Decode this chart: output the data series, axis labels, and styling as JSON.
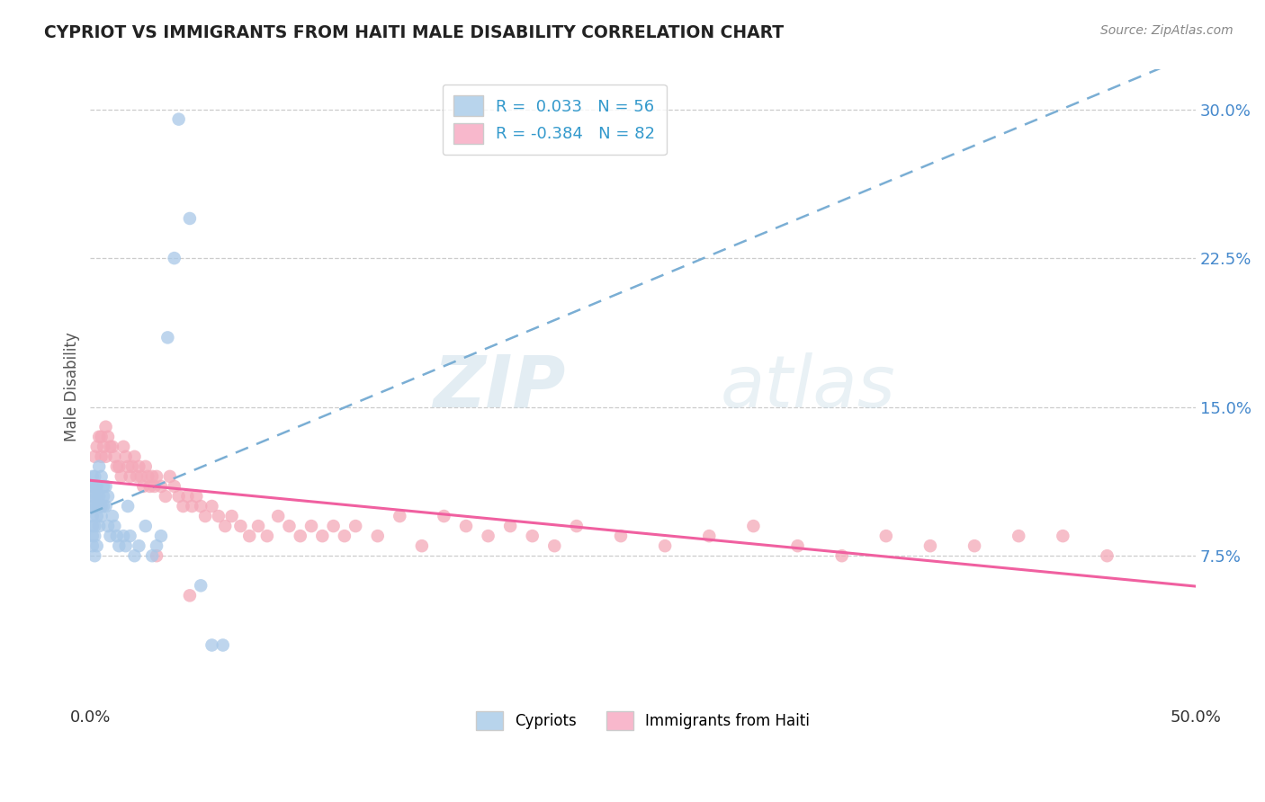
{
  "title": "CYPRIOT VS IMMIGRANTS FROM HAITI MALE DISABILITY CORRELATION CHART",
  "source": "Source: ZipAtlas.com",
  "xlabel_cypriot": "Cypriots",
  "xlabel_haiti": "Immigrants from Haiti",
  "ylabel": "Male Disability",
  "r_cypriot": 0.033,
  "n_cypriot": 56,
  "r_haiti": -0.384,
  "n_haiti": 82,
  "xmin": 0.0,
  "xmax": 0.5,
  "ymin": 0.0,
  "ymax": 0.32,
  "yticks": [
    0.075,
    0.15,
    0.225,
    0.3
  ],
  "ytick_labels": [
    "7.5%",
    "15.0%",
    "22.5%",
    "30.0%"
  ],
  "xticks": [
    0.0,
    0.5
  ],
  "xtick_labels": [
    "0.0%",
    "50.0%"
  ],
  "color_cypriot": "#a8c8e8",
  "color_haiti": "#f4a8b8",
  "line_color_cypriot": "#7aaed4",
  "line_color_haiti": "#f060a0",
  "legend_color_cypriot": "#b8d4ec",
  "legend_color_haiti": "#f8b8cc",
  "watermark_zip": "ZIP",
  "watermark_atlas": "atlas",
  "cypriot_x": [
    0.001,
    0.001,
    0.001,
    0.001,
    0.001,
    0.001,
    0.001,
    0.001,
    0.002,
    0.002,
    0.002,
    0.002,
    0.002,
    0.002,
    0.002,
    0.003,
    0.003,
    0.003,
    0.003,
    0.003,
    0.004,
    0.004,
    0.004,
    0.004,
    0.005,
    0.005,
    0.005,
    0.006,
    0.006,
    0.006,
    0.007,
    0.007,
    0.008,
    0.008,
    0.009,
    0.01,
    0.011,
    0.012,
    0.013,
    0.015,
    0.016,
    0.017,
    0.018,
    0.02,
    0.022,
    0.025,
    0.028,
    0.03,
    0.032,
    0.035,
    0.038,
    0.04,
    0.045,
    0.05,
    0.055,
    0.06
  ],
  "cypriot_y": [
    0.085,
    0.09,
    0.095,
    0.1,
    0.105,
    0.11,
    0.115,
    0.08,
    0.1,
    0.105,
    0.11,
    0.115,
    0.09,
    0.085,
    0.075,
    0.095,
    0.1,
    0.105,
    0.11,
    0.08,
    0.09,
    0.1,
    0.105,
    0.12,
    0.095,
    0.1,
    0.115,
    0.1,
    0.105,
    0.11,
    0.1,
    0.11,
    0.09,
    0.105,
    0.085,
    0.095,
    0.09,
    0.085,
    0.08,
    0.085,
    0.08,
    0.1,
    0.085,
    0.075,
    0.08,
    0.09,
    0.075,
    0.08,
    0.085,
    0.185,
    0.225,
    0.295,
    0.245,
    0.06,
    0.03,
    0.03
  ],
  "haiti_x": [
    0.002,
    0.003,
    0.004,
    0.005,
    0.005,
    0.006,
    0.007,
    0.007,
    0.008,
    0.009,
    0.01,
    0.011,
    0.012,
    0.013,
    0.014,
    0.015,
    0.016,
    0.017,
    0.018,
    0.019,
    0.02,
    0.021,
    0.022,
    0.023,
    0.024,
    0.025,
    0.026,
    0.027,
    0.028,
    0.029,
    0.03,
    0.032,
    0.034,
    0.036,
    0.038,
    0.04,
    0.042,
    0.044,
    0.046,
    0.048,
    0.05,
    0.052,
    0.055,
    0.058,
    0.061,
    0.064,
    0.068,
    0.072,
    0.076,
    0.08,
    0.085,
    0.09,
    0.095,
    0.1,
    0.105,
    0.11,
    0.115,
    0.12,
    0.13,
    0.14,
    0.15,
    0.16,
    0.17,
    0.18,
    0.19,
    0.2,
    0.21,
    0.22,
    0.24,
    0.26,
    0.28,
    0.3,
    0.32,
    0.34,
    0.36,
    0.38,
    0.4,
    0.42,
    0.44,
    0.46,
    0.03,
    0.045
  ],
  "haiti_y": [
    0.125,
    0.13,
    0.135,
    0.135,
    0.125,
    0.13,
    0.14,
    0.125,
    0.135,
    0.13,
    0.13,
    0.125,
    0.12,
    0.12,
    0.115,
    0.13,
    0.125,
    0.12,
    0.115,
    0.12,
    0.125,
    0.115,
    0.12,
    0.115,
    0.11,
    0.12,
    0.115,
    0.11,
    0.115,
    0.11,
    0.115,
    0.11,
    0.105,
    0.115,
    0.11,
    0.105,
    0.1,
    0.105,
    0.1,
    0.105,
    0.1,
    0.095,
    0.1,
    0.095,
    0.09,
    0.095,
    0.09,
    0.085,
    0.09,
    0.085,
    0.095,
    0.09,
    0.085,
    0.09,
    0.085,
    0.09,
    0.085,
    0.09,
    0.085,
    0.095,
    0.08,
    0.095,
    0.09,
    0.085,
    0.09,
    0.085,
    0.08,
    0.09,
    0.085,
    0.08,
    0.085,
    0.09,
    0.08,
    0.075,
    0.085,
    0.08,
    0.08,
    0.085,
    0.085,
    0.075,
    0.075,
    0.055
  ]
}
